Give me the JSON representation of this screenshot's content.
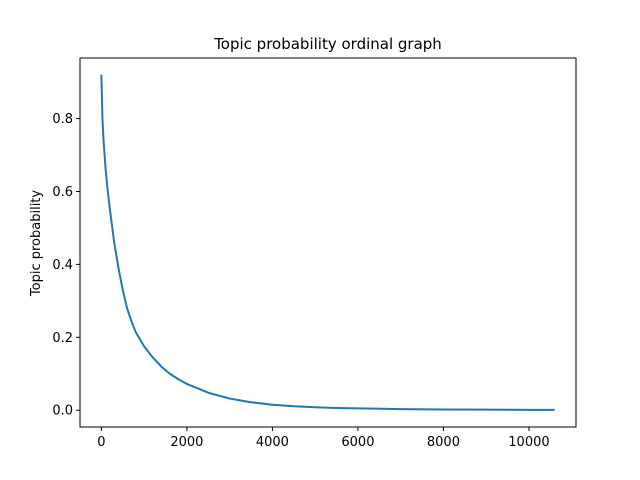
{
  "chart_data": {
    "type": "line",
    "title": "Topic probability ordinal graph",
    "xlabel": "",
    "ylabel": "Topic probability",
    "xlim": [
      -500,
      11100
    ],
    "ylim": [
      -0.046,
      0.966
    ],
    "xticks": [
      0,
      2000,
      4000,
      6000,
      8000,
      10000
    ],
    "yticks": [
      0.0,
      0.2,
      0.4,
      0.6,
      0.8
    ],
    "ytick_labels": [
      "0.0",
      "0.2",
      "0.4",
      "0.6",
      "0.8"
    ],
    "grid": false,
    "line_color": "#1f77b4",
    "series": [
      {
        "x": [
          0,
          25,
          50,
          100,
          150,
          200,
          300,
          400,
          500,
          600,
          700,
          800,
          1000,
          1200,
          1400,
          1600,
          1800,
          2000,
          2500,
          3000,
          3500,
          4000,
          4500,
          5000,
          5500,
          6000,
          7000,
          8000,
          9000,
          10000,
          10600
        ],
        "y": [
          0.92,
          0.8,
          0.74,
          0.66,
          0.6,
          0.55,
          0.46,
          0.39,
          0.33,
          0.28,
          0.245,
          0.215,
          0.175,
          0.145,
          0.12,
          0.1,
          0.085,
          0.072,
          0.048,
          0.032,
          0.022,
          0.015,
          0.011,
          0.008,
          0.006,
          0.005,
          0.003,
          0.002,
          0.0015,
          0.001,
          0.001
        ]
      }
    ]
  }
}
